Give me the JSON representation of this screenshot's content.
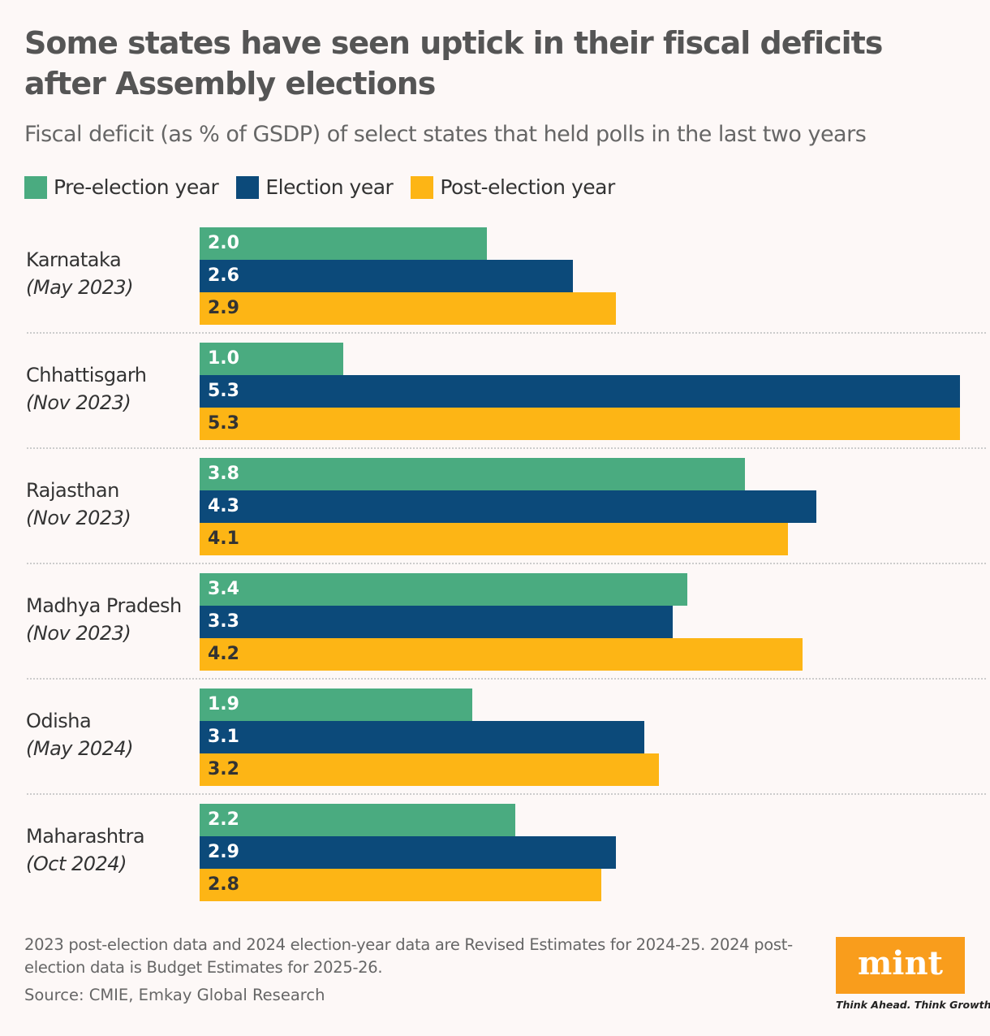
{
  "title": "Some states have seen uptick in their fiscal deficits after Assembly elections",
  "subtitle": "Fiscal deficit (as % of GSDP) of select states that held polls in the last two years",
  "note": "2023 post-election data and 2024 election-year data are Revised Estimates for 2024-25. 2024 post-election data is Budget Estimates for 2025-26.",
  "source": "Source: CMIE, Emkay Global Research",
  "logo": {
    "text": "mint",
    "tagline": "Think Ahead. Think Growth."
  },
  "chart_data": {
    "type": "bar",
    "orientation": "horizontal",
    "title": "Some states have seen uptick in their fiscal deficits after Assembly elections",
    "subtitle": "Fiscal deficit (as % of GSDP) of select states that held polls in the last two years",
    "legend_position": "top-left",
    "grid": false,
    "categories": [
      {
        "name": "Karnataka",
        "date": "(May 2023)"
      },
      {
        "name": "Chhattisgarh",
        "date": "(Nov 2023)"
      },
      {
        "name": "Rajasthan",
        "date": "(Nov 2023)"
      },
      {
        "name": "Madhya Pradesh",
        "date": "(Nov 2023)"
      },
      {
        "name": "Odisha",
        "date": "(May 2024)"
      },
      {
        "name": "Maharashtra",
        "date": "(Oct 2024)"
      }
    ],
    "series": [
      {
        "name": "Pre-election year",
        "color": "#4aab80",
        "label_color": "#ffffff",
        "values": [
          2.0,
          1.0,
          3.8,
          3.4,
          1.9,
          2.2
        ]
      },
      {
        "name": "Election year",
        "color": "#0c4a7a",
        "label_color": "#ffffff",
        "values": [
          2.6,
          5.3,
          4.3,
          3.3,
          3.1,
          2.9
        ]
      },
      {
        "name": "Post-election year",
        "color": "#fdb515",
        "label_color": "#333333",
        "values": [
          2.9,
          5.3,
          4.1,
          4.2,
          3.2,
          2.8
        ]
      }
    ],
    "xlim": [
      0,
      5.35
    ]
  }
}
